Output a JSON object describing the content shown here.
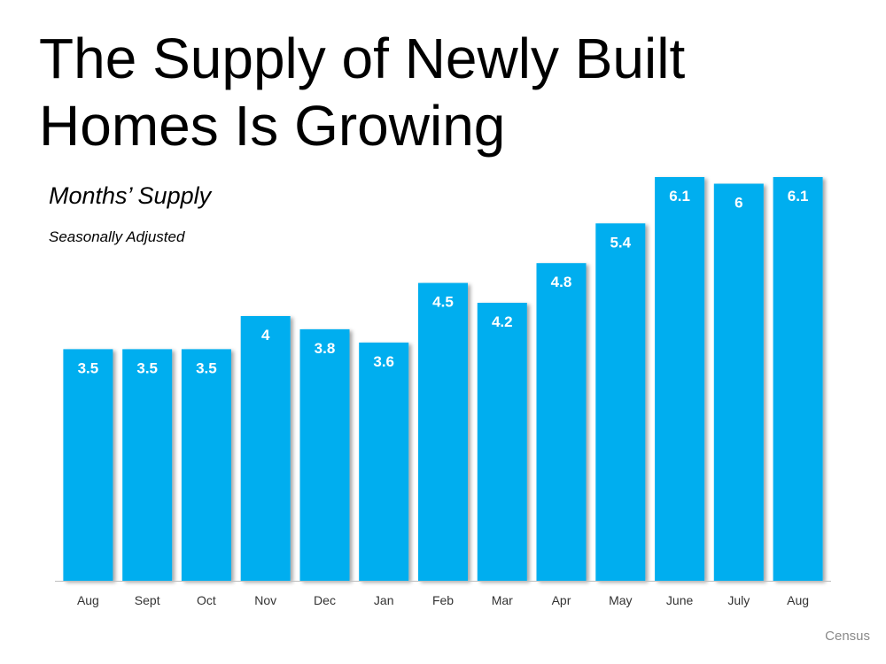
{
  "title": "The Supply of Newly Built Homes Is Growing",
  "subtitle": "Months’ Supply",
  "note": "Seasonally Adjusted",
  "source": "Census",
  "colors": {
    "bar": "#00aeef",
    "bar_label": "#ffffff",
    "axis_label": "#333333",
    "axis_line": "#bfbfbf"
  },
  "chart_data": {
    "type": "bar",
    "categories": [
      "Aug",
      "Sept",
      "Oct",
      "Nov",
      "Dec",
      "Jan",
      "Feb",
      "Mar",
      "Apr",
      "May",
      "June",
      "July",
      "Aug"
    ],
    "values": [
      3.5,
      3.5,
      3.5,
      4,
      3.8,
      3.6,
      4.5,
      4.2,
      4.8,
      5.4,
      6.1,
      6,
      6.1
    ],
    "value_labels": [
      "3.5",
      "3.5",
      "3.5",
      "4",
      "3.8",
      "3.6",
      "4.5",
      "4.2",
      "4.8",
      "5.4",
      "6.1",
      "6",
      "6.1"
    ],
    "title": "The Supply of Newly Built Homes Is Growing",
    "ylabel": "Months’ Supply",
    "ylim": [
      0,
      6.1
    ],
    "grid": false,
    "legend": "none"
  }
}
